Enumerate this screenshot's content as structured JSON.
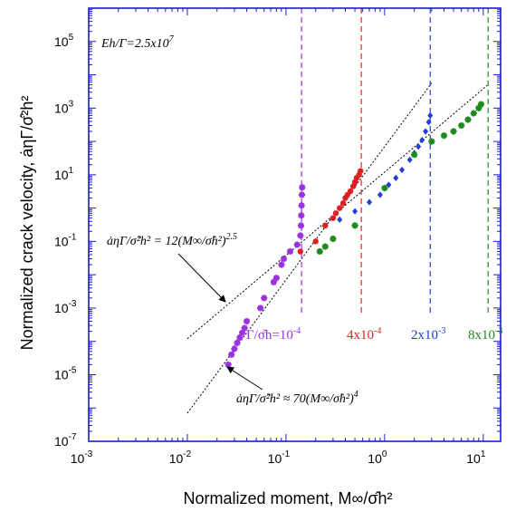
{
  "chart_data": {
    "type": "scatter",
    "title": "",
    "xlabel": "Normalized moment, M∞/σ̂h²",
    "ylabel": "Normalized crack velocity, ȧηΓ/σ̂²h²",
    "xscale": "log",
    "yscale": "log",
    "xlim": [
      0.001,
      15
    ],
    "ylim": [
      1e-07,
      1000000.0
    ],
    "x_ticks": [
      {
        "base": "10",
        "exp": "-3"
      },
      {
        "base": "10",
        "exp": "-2"
      },
      {
        "base": "10",
        "exp": "-1"
      },
      {
        "base": "10",
        "exp": "0"
      },
      {
        "base": "10",
        "exp": "1"
      }
    ],
    "y_ticks": [
      {
        "base": "10",
        "exp": "-7"
      },
      {
        "base": "10",
        "exp": "-5"
      },
      {
        "base": "10",
        "exp": "-3"
      },
      {
        "base": "10",
        "exp": "-1"
      },
      {
        "base": "10",
        "exp": "1"
      },
      {
        "base": "10",
        "exp": "3"
      },
      {
        "base": "10",
        "exp": "5"
      }
    ],
    "grid": false,
    "top_annotation": {
      "lhs": "Eh/Γ=2.5x10",
      "exp": "7"
    },
    "fit_lines": [
      {
        "label": {
          "lhs": "ȧηΓ/σ̂²h² = 12(M∞/σ̂h²)",
          "exp": "2.5"
        },
        "coefficient": 12,
        "exponent": 2.5,
        "x_range": [
          0.01,
          11
        ]
      },
      {
        "label": {
          "lhs": "ȧηΓ/σ̂²h² ≈ 70(M∞/σ̂h²)",
          "exp": "4"
        },
        "coefficient": 70,
        "exponent": 4,
        "x_range": [
          0.01,
          3
        ]
      }
    ],
    "vertical_lines": [
      {
        "x": 0.144,
        "color": "#9b30e0",
        "label": {
          "lhs": "Γ/σ̂h=10",
          "exp": "-4"
        }
      },
      {
        "x": 0.58,
        "color": "#e02020",
        "label": {
          "lhs": "4x10",
          "exp": "-4"
        }
      },
      {
        "x": 2.9,
        "color": "#1f3fd6",
        "label": {
          "lhs": "2x10",
          "exp": "-3"
        }
      },
      {
        "x": 11.2,
        "color": "#1e8a1e",
        "label": {
          "lhs": "8x10",
          "exp": "-3"
        }
      }
    ],
    "series": [
      {
        "color": "#9b30e0",
        "marker": "star",
        "points": [
          [
            0.026,
            2e-05
          ],
          [
            0.028,
            4e-05
          ],
          [
            0.03,
            6e-05
          ],
          [
            0.032,
            9e-05
          ],
          [
            0.034,
            0.00013
          ],
          [
            0.036,
            0.00018
          ],
          [
            0.038,
            0.00025
          ],
          [
            0.04,
            0.0004
          ],
          [
            0.055,
            0.001
          ],
          [
            0.06,
            0.002
          ],
          [
            0.075,
            0.006
          ],
          [
            0.08,
            0.008
          ],
          [
            0.09,
            0.02
          ],
          [
            0.095,
            0.03
          ],
          [
            0.11,
            0.05
          ],
          [
            0.13,
            0.08
          ],
          [
            0.14,
            0.15
          ],
          [
            0.142,
            0.3
          ],
          [
            0.143,
            0.6
          ],
          [
            0.144,
            1.2
          ],
          [
            0.145,
            2.5
          ],
          [
            0.146,
            4.2
          ]
        ]
      },
      {
        "color": "#e02020",
        "marker": "circle",
        "points": [
          [
            0.14,
            0.05
          ],
          [
            0.2,
            0.1
          ],
          [
            0.25,
            0.3
          ],
          [
            0.3,
            0.5
          ],
          [
            0.32,
            0.7
          ],
          [
            0.35,
            1.0
          ],
          [
            0.38,
            1.4
          ],
          [
            0.4,
            2.0
          ],
          [
            0.42,
            2.5
          ],
          [
            0.45,
            3.2
          ],
          [
            0.48,
            4.5
          ],
          [
            0.5,
            6.0
          ],
          [
            0.52,
            8.0
          ],
          [
            0.55,
            10.0
          ],
          [
            0.57,
            13.0
          ]
        ]
      },
      {
        "color": "#1f3fd6",
        "marker": "diamond",
        "points": [
          [
            0.35,
            0.45
          ],
          [
            0.5,
            0.8
          ],
          [
            0.7,
            1.5
          ],
          [
            0.9,
            2.5
          ],
          [
            1.1,
            5.0
          ],
          [
            1.3,
            8.0
          ],
          [
            1.5,
            14.0
          ],
          [
            1.8,
            28.0
          ],
          [
            2.0,
            45.0
          ],
          [
            2.2,
            70.0
          ],
          [
            2.4,
            110.0
          ],
          [
            2.6,
            200.0
          ],
          [
            2.8,
            380.0
          ],
          [
            2.9,
            600.0
          ]
        ]
      },
      {
        "color": "#1e8a1e",
        "marker": "star",
        "points": [
          [
            0.22,
            0.05
          ],
          [
            0.25,
            0.07
          ],
          [
            0.3,
            0.12
          ],
          [
            0.5,
            0.3
          ],
          [
            1.0,
            4.0
          ],
          [
            2.0,
            40.0
          ],
          [
            3.0,
            100.0
          ],
          [
            4.0,
            150.0
          ],
          [
            5.0,
            200.0
          ],
          [
            6.0,
            300.0
          ],
          [
            7.0,
            450.0
          ],
          [
            8.0,
            700.0
          ],
          [
            9.0,
            1000.0
          ],
          [
            9.5,
            1300.0
          ]
        ]
      }
    ]
  }
}
